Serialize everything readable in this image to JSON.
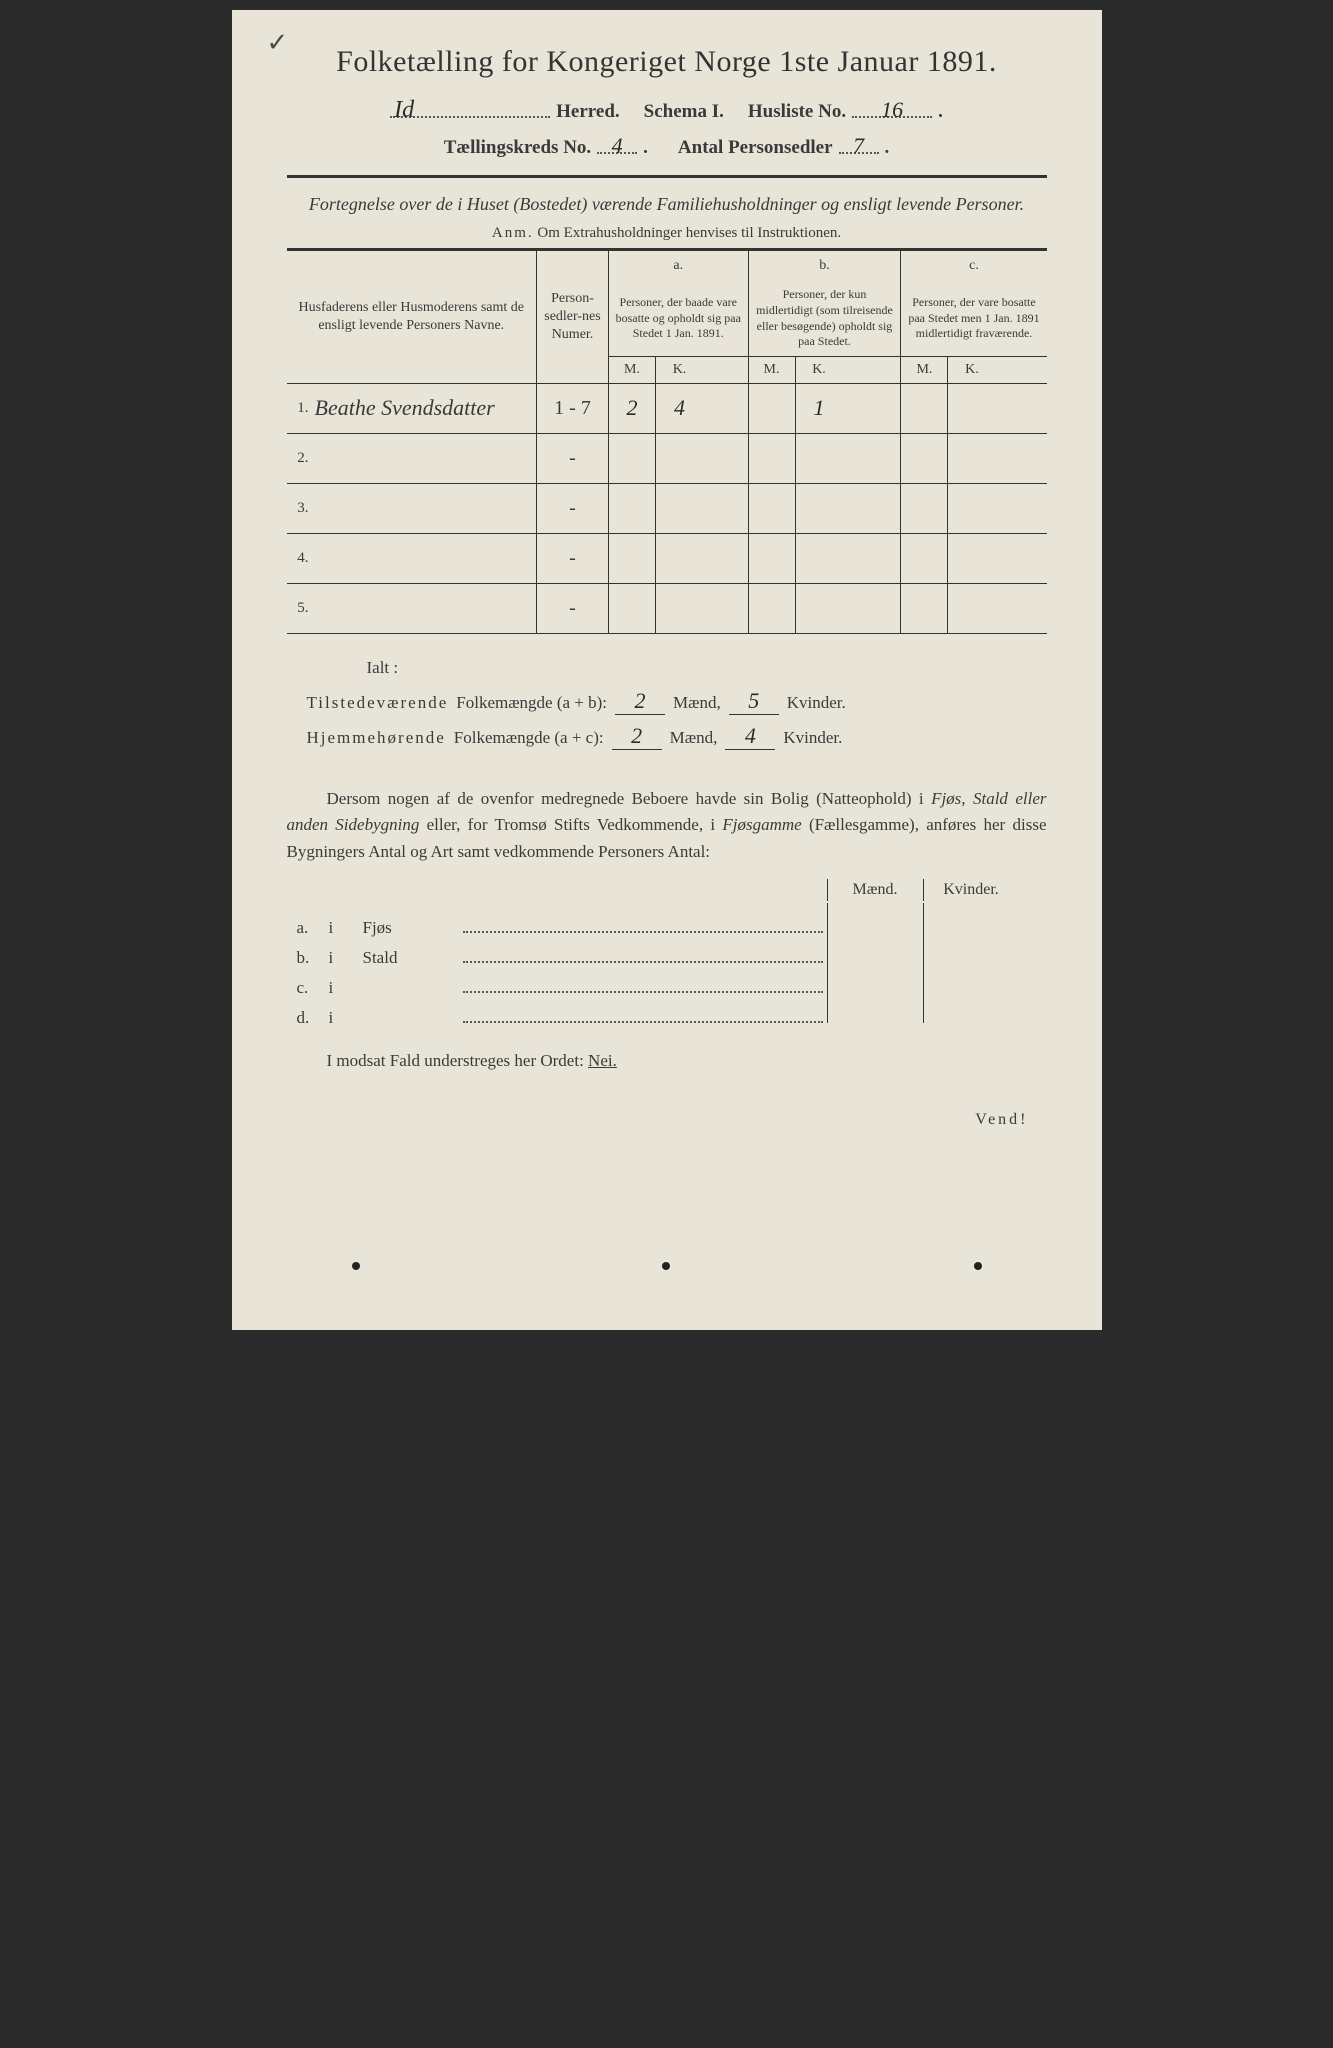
{
  "colors": {
    "paper": "#e8e4d8",
    "ink": "#3a3a3a",
    "background": "#2a2a2a"
  },
  "title": "Folketælling for Kongeriget Norge 1ste Januar 1891.",
  "header": {
    "herred_value": "Id",
    "herred_label": "Herred.",
    "schema_label": "Schema I.",
    "husliste_label": "Husliste No.",
    "husliste_value": "16",
    "kreds_label": "Tællingskreds No.",
    "kreds_value": "4",
    "antal_label": "Antal Personsedler",
    "antal_value": "7"
  },
  "subtitle": "Fortegnelse over de i Huset (Bostedet) værende Familiehusholdninger og ensligt levende Personer.",
  "anm_label": "Anm.",
  "anm_text": "Om Extrahusholdninger henvises til Instruktionen.",
  "table": {
    "col_name": "Husfaderens eller Husmoderens samt de ensligt levende Personers Navne.",
    "col_num": "Person-sedler-nes Numer.",
    "col_a_letter": "a.",
    "col_a": "Personer, der baade vare bosatte og opholdt sig paa Stedet 1 Jan. 1891.",
    "col_b_letter": "b.",
    "col_b": "Personer, der kun midlertidigt (som tilreisende eller besøgende) opholdt sig paa Stedet.",
    "col_c_letter": "c.",
    "col_c": "Personer, der vare bosatte paa Stedet men 1 Jan. 1891 midlertidigt fraværende.",
    "m": "M.",
    "k": "K.",
    "rows": [
      {
        "n": "1.",
        "name": "Beathe Svendsdatter",
        "num": "1 - 7",
        "am": "2",
        "ak": "4",
        "bm": "",
        "bk": "1",
        "cm": "",
        "ck": ""
      },
      {
        "n": "2.",
        "name": "",
        "num": "-",
        "am": "",
        "ak": "",
        "bm": "",
        "bk": "",
        "cm": "",
        "ck": ""
      },
      {
        "n": "3.",
        "name": "",
        "num": "-",
        "am": "",
        "ak": "",
        "bm": "",
        "bk": "",
        "cm": "",
        "ck": ""
      },
      {
        "n": "4.",
        "name": "",
        "num": "-",
        "am": "",
        "ak": "",
        "bm": "",
        "bk": "",
        "cm": "",
        "ck": ""
      },
      {
        "n": "5.",
        "name": "",
        "num": "-",
        "am": "",
        "ak": "",
        "bm": "",
        "bk": "",
        "cm": "",
        "ck": ""
      }
    ]
  },
  "ialt": {
    "label": "Ialt :",
    "line1_a": "Tilstedeværende",
    "line1_b": "Folkemængde (a + b):",
    "line1_m": "2",
    "maend": "Mænd,",
    "line1_k": "5",
    "kvinder": "Kvinder.",
    "line2_a": "Hjemmehørende",
    "line2_b": "Folkemængde (a + c):",
    "line2_m": "2",
    "line2_k": "4"
  },
  "dersom": "Dersom nogen af de ovenfor medregnede Beboere havde sin Bolig (Natteophold) i Fjøs, Stald eller anden Sidebygning eller, for Tromsø Stifts Vedkommende, i Fjøsgamme (Fællesgamme), anføres her disse Bygningers Antal og Art samt vedkommende Personers Antal:",
  "bldg": {
    "maend": "Mænd.",
    "kvinder": "Kvinder.",
    "rows": [
      {
        "lbl": "a.",
        "i": "i",
        "type": "Fjøs"
      },
      {
        "lbl": "b.",
        "i": "i",
        "type": "Stald"
      },
      {
        "lbl": "c.",
        "i": "i",
        "type": ""
      },
      {
        "lbl": "d.",
        "i": "i",
        "type": ""
      }
    ]
  },
  "footer": {
    "text_a": "I modsat Fald understreges her Ordet: ",
    "nei": "Nei."
  },
  "vend": "Vend!"
}
